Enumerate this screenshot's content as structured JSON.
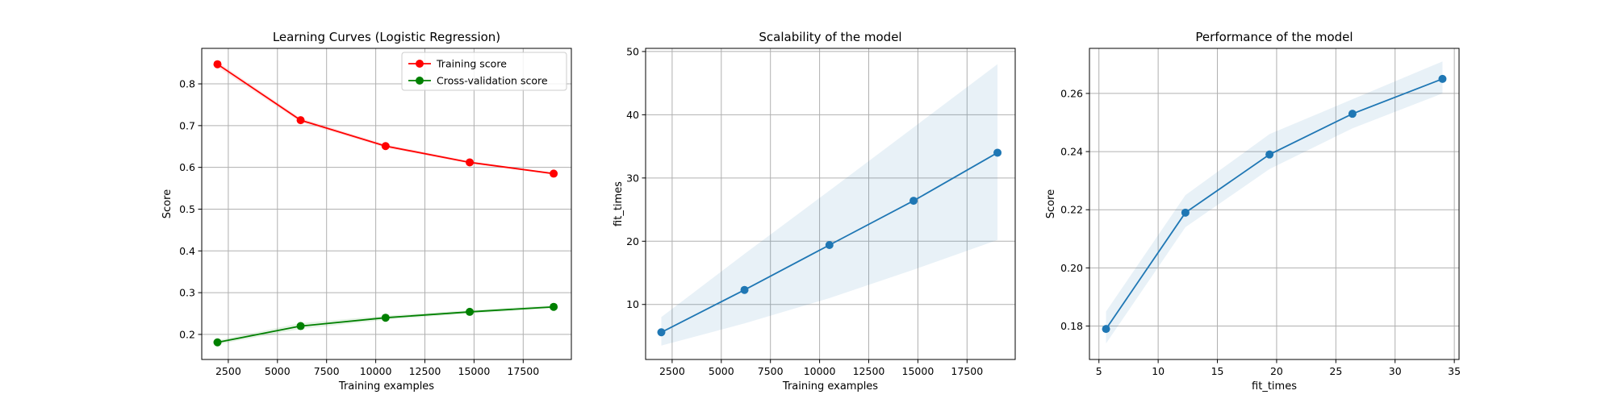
{
  "chart_data": [
    {
      "type": "line",
      "title": "Learning Curves (Logistic Regression)",
      "xlabel": "Training examples",
      "ylabel": "Score",
      "xlim": [
        1150,
        19950
      ],
      "ylim": [
        0.14,
        0.885
      ],
      "xticks": [
        2500,
        5000,
        7500,
        10000,
        12500,
        15000,
        17500
      ],
      "yticks": [
        0.2,
        0.3,
        0.4,
        0.5,
        0.6,
        0.7,
        0.8
      ],
      "grid": true,
      "legend": "top-right",
      "x": [
        1950,
        6180,
        10500,
        14780,
        19050
      ],
      "series": [
        {
          "name": "Training score",
          "color": "#ff0000",
          "values": [
            0.847,
            0.713,
            0.651,
            0.612,
            0.585
          ],
          "band_lower": [
            0.84,
            0.708,
            0.647,
            0.609,
            0.583
          ],
          "band_upper": [
            0.853,
            0.718,
            0.655,
            0.615,
            0.587
          ]
        },
        {
          "name": "Cross-validation score",
          "color": "#008000",
          "values": [
            0.181,
            0.22,
            0.24,
            0.254,
            0.266
          ],
          "band_lower": [
            0.176,
            0.213,
            0.235,
            0.25,
            0.262
          ],
          "band_upper": [
            0.186,
            0.227,
            0.245,
            0.258,
            0.27
          ]
        }
      ]
    },
    {
      "type": "line",
      "title": "Scalability of the model",
      "xlabel": "Training examples",
      "ylabel": "fit_times",
      "xlim": [
        1150,
        19950
      ],
      "ylim": [
        1.3,
        50.5
      ],
      "xticks": [
        2500,
        5000,
        7500,
        10000,
        12500,
        15000,
        17500
      ],
      "yticks": [
        10,
        20,
        30,
        40,
        50
      ],
      "grid": true,
      "x": [
        1950,
        6180,
        10500,
        14780,
        19050
      ],
      "series": [
        {
          "color": "#1f77b4",
          "values": [
            5.6,
            12.3,
            19.4,
            26.4,
            34.0
          ],
          "band_lower": [
            3.5,
            7.0,
            11.0,
            15.5,
            20.2
          ],
          "band_upper": [
            8.0,
            18.0,
            28.0,
            38.0,
            48.0
          ]
        }
      ]
    },
    {
      "type": "line",
      "title": "Performance of the model",
      "xlabel": "fit_times",
      "ylabel": "Score",
      "xlim": [
        4.2,
        35.4
      ],
      "ylim": [
        0.1685,
        0.2755
      ],
      "xticks": [
        5,
        10,
        15,
        20,
        25,
        30,
        35
      ],
      "yticks": [
        0.18,
        0.2,
        0.22,
        0.24,
        0.26
      ],
      "grid": true,
      "series": [
        {
          "color": "#1f77b4",
          "x": [
            5.6,
            12.3,
            19.4,
            26.4,
            34.0
          ],
          "values": [
            0.179,
            0.219,
            0.239,
            0.253,
            0.265
          ],
          "band_lower": [
            0.174,
            0.214,
            0.234,
            0.248,
            0.26
          ],
          "band_upper": [
            0.185,
            0.225,
            0.246,
            0.258,
            0.271
          ]
        }
      ]
    }
  ]
}
